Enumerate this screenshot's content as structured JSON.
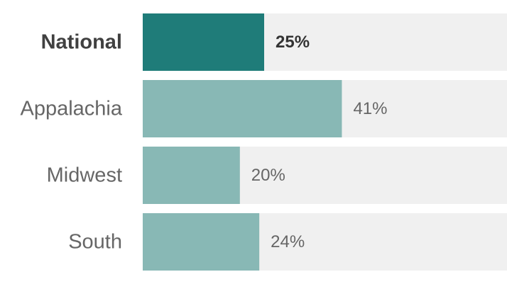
{
  "chart_data": {
    "type": "bar",
    "orientation": "horizontal",
    "title": "",
    "xlabel": "",
    "ylabel": "",
    "categories": [
      "National",
      "Appalachia",
      "Midwest",
      "South"
    ],
    "values": [
      25,
      41,
      20,
      24
    ],
    "value_labels": [
      "25%",
      "41%",
      "20%",
      "24%"
    ],
    "highlight": "National",
    "xlim": [
      0,
      75
    ],
    "unit": "%",
    "colors": {
      "highlight_bar": "#1f7c79",
      "bar": "#88b8b5",
      "track": "#f0f0f0"
    },
    "grid": false,
    "legend": "none"
  }
}
